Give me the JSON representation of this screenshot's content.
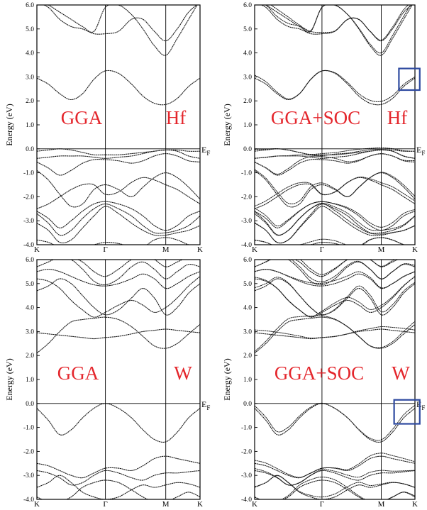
{
  "figure": {
    "fermi_label": "E",
    "fermi_sub": "F"
  },
  "chart_data": [
    {
      "type": "line",
      "panel": "top-left",
      "method_label": "GGA",
      "element_label": "Hf",
      "ylabel": "Energy (eV)",
      "ylim": [
        -4.0,
        6.0
      ],
      "yticks": [
        "6.0",
        "5.0",
        "4.0",
        "3.0",
        "2.0",
        "1.0",
        "0.0",
        "-1.0",
        "-2.0",
        "-3.0",
        "-4.0"
      ],
      "xticks": [
        {
          "label": "K",
          "x": 0
        },
        {
          "label": "Γ",
          "x": 0.42
        },
        {
          "label": "M",
          "x": 0.79
        },
        {
          "label": "K",
          "x": 1
        }
      ],
      "x": [
        0,
        0.07,
        0.14,
        0.21,
        0.28,
        0.35,
        0.42,
        0.5,
        0.58,
        0.65,
        0.72,
        0.79,
        0.86,
        0.93,
        1
      ],
      "soc_split": false,
      "highlight_box": null,
      "series": [
        {
          "values": [
            6.1,
            5.9,
            5.4,
            5.1,
            5.0,
            4.8,
            4.8,
            4.9,
            5.4,
            5.4,
            4.9,
            4.5,
            5.0,
            5.7,
            6.1
          ]
        },
        {
          "values": [
            6.2,
            6.0,
            5.7,
            5.4,
            5.1,
            4.9,
            5.9,
            6.0,
            5.6,
            5.0,
            4.3,
            3.9,
            4.6,
            5.4,
            6.2
          ]
        },
        {
          "values": [
            2.95,
            2.7,
            2.3,
            2.05,
            2.3,
            2.9,
            3.25,
            3.15,
            2.7,
            2.2,
            1.9,
            1.85,
            2.1,
            2.6,
            2.95
          ]
        },
        {
          "values": [
            -0.1,
            -0.05,
            0.0,
            -0.05,
            -0.15,
            -0.25,
            -0.25,
            -0.25,
            -0.2,
            -0.15,
            -0.1,
            -0.05,
            -0.05,
            -0.1,
            -0.1
          ]
        },
        {
          "values": [
            -0.4,
            -0.35,
            -0.3,
            -0.3,
            -0.3,
            -0.35,
            -0.4,
            -0.35,
            -0.3,
            -0.2,
            -0.1,
            -0.05,
            -0.1,
            -0.3,
            -0.4
          ]
        },
        {
          "values": [
            -0.55,
            -0.8,
            -1.1,
            -0.9,
            -0.6,
            -0.45,
            -0.45,
            -0.5,
            -0.6,
            -0.5,
            -0.3,
            -0.2,
            -0.3,
            -0.5,
            -0.55
          ]
        },
        {
          "values": [
            -0.9,
            -1.3,
            -1.9,
            -2.4,
            -2.3,
            -1.7,
            -1.5,
            -1.7,
            -2.0,
            -1.6,
            -1.2,
            -1.0,
            -1.2,
            -1.6,
            -2.1
          ]
        },
        {
          "values": [
            -2.5,
            -2.3,
            -2.0,
            -1.7,
            -1.5,
            -1.5,
            -1.9,
            -1.8,
            -1.4,
            -1.2,
            -1.3,
            -1.5,
            -1.7,
            -2.0,
            -2.3
          ]
        },
        {
          "values": [
            -2.6,
            -2.9,
            -3.3,
            -3.0,
            -2.6,
            -2.3,
            -2.2,
            -2.3,
            -2.5,
            -2.8,
            -3.2,
            -3.4,
            -3.2,
            -2.8,
            -2.6
          ]
        },
        {
          "values": [
            -2.7,
            -3.1,
            -3.6,
            -3.4,
            -2.9,
            -2.5,
            -2.3,
            -2.5,
            -2.8,
            -3.2,
            -3.5,
            -3.5,
            -3.4,
            -3.2,
            -2.8
          ]
        },
        {
          "values": [
            -3.1,
            -3.4,
            -3.9,
            -3.8,
            -3.3,
            -2.8,
            -2.4,
            -2.7,
            -3.1,
            -3.4,
            -3.6,
            -3.6,
            -3.5,
            -3.4,
            -3.2
          ]
        },
        {
          "values": [
            -3.8,
            -3.9,
            -4.1,
            -4.1,
            -4.1,
            -4.0,
            -3.9,
            -3.95,
            -4.1,
            -4.1,
            -3.8,
            -3.7,
            -3.8,
            -4.0,
            -4.1
          ]
        }
      ]
    },
    {
      "type": "line",
      "panel": "top-right",
      "method_label": "GGA+SOC",
      "element_label": "Hf",
      "ylabel": "Energy (eV)",
      "ylim": [
        -4.0,
        6.0
      ],
      "yticks": [
        "6.0",
        "5.0",
        "4.0",
        "3.0",
        "2.0",
        "1.0",
        "0.0",
        "-1.0",
        "-2.0",
        "-3.0",
        "-4.0"
      ],
      "xticks": [
        {
          "label": "K",
          "x": 0
        },
        {
          "label": "Γ",
          "x": 0.42
        },
        {
          "label": "M",
          "x": 0.79
        },
        {
          "label": "K",
          "x": 1
        }
      ],
      "x": [
        0,
        0.07,
        0.14,
        0.21,
        0.28,
        0.35,
        0.42,
        0.5,
        0.58,
        0.65,
        0.72,
        0.79,
        0.86,
        0.93,
        1
      ],
      "soc_split": true,
      "highlight_box": {
        "x": [
          0.9,
          1.03
        ],
        "y": [
          2.45,
          3.35
        ]
      },
      "series": [
        {
          "values": [
            6.1,
            5.9,
            5.4,
            5.1,
            5.0,
            4.8,
            4.8,
            4.9,
            5.4,
            5.4,
            4.9,
            4.5,
            5.0,
            5.7,
            6.1
          ]
        },
        {
          "values": [
            6.2,
            6.0,
            5.7,
            5.4,
            5.1,
            4.9,
            5.9,
            6.0,
            5.6,
            5.0,
            4.3,
            3.9,
            4.6,
            5.4,
            6.2
          ]
        },
        {
          "values": [
            2.95,
            2.7,
            2.3,
            2.05,
            2.3,
            2.9,
            3.25,
            3.15,
            2.7,
            2.2,
            1.9,
            1.85,
            2.1,
            2.6,
            2.95
          ]
        },
        {
          "values": [
            -0.1,
            -0.05,
            0.0,
            -0.05,
            -0.15,
            -0.25,
            -0.25,
            -0.25,
            -0.2,
            -0.15,
            -0.1,
            -0.05,
            -0.05,
            -0.1,
            -0.1
          ]
        },
        {
          "values": [
            -0.4,
            -0.35,
            -0.3,
            -0.3,
            -0.3,
            -0.35,
            -0.4,
            -0.35,
            -0.3,
            -0.2,
            -0.1,
            -0.05,
            -0.1,
            -0.3,
            -0.4
          ]
        },
        {
          "values": [
            -0.55,
            -0.8,
            -1.1,
            -0.9,
            -0.6,
            -0.45,
            -0.45,
            -0.5,
            -0.6,
            -0.5,
            -0.3,
            -0.2,
            -0.3,
            -0.5,
            -0.55
          ]
        },
        {
          "values": [
            -0.9,
            -1.3,
            -1.9,
            -2.4,
            -2.3,
            -1.7,
            -1.5,
            -1.7,
            -2.0,
            -1.6,
            -1.2,
            -1.0,
            -1.2,
            -1.6,
            -2.1
          ]
        },
        {
          "values": [
            -2.5,
            -2.3,
            -2.0,
            -1.7,
            -1.5,
            -1.5,
            -1.9,
            -1.8,
            -1.4,
            -1.2,
            -1.3,
            -1.5,
            -1.7,
            -2.0,
            -2.3
          ]
        },
        {
          "values": [
            -2.6,
            -2.9,
            -3.3,
            -3.0,
            -2.6,
            -2.3,
            -2.2,
            -2.3,
            -2.5,
            -2.8,
            -3.2,
            -3.4,
            -3.2,
            -2.8,
            -2.6
          ]
        },
        {
          "values": [
            -2.7,
            -3.1,
            -3.6,
            -3.4,
            -2.9,
            -2.5,
            -2.3,
            -2.5,
            -2.8,
            -3.2,
            -3.5,
            -3.5,
            -3.4,
            -3.2,
            -2.8
          ]
        },
        {
          "values": [
            -3.1,
            -3.4,
            -3.9,
            -3.8,
            -3.3,
            -2.8,
            -2.4,
            -2.7,
            -3.1,
            -3.4,
            -3.6,
            -3.6,
            -3.5,
            -3.4,
            -3.2
          ]
        },
        {
          "values": [
            -3.8,
            -3.9,
            -4.1,
            -4.1,
            -4.1,
            -4.0,
            -3.9,
            -3.95,
            -4.1,
            -4.1,
            -3.8,
            -3.7,
            -3.8,
            -4.0,
            -4.1
          ]
        }
      ]
    },
    {
      "type": "line",
      "panel": "bottom-left",
      "method_label": "GGA",
      "element_label": "W",
      "ylabel": "Energy (eV)",
      "ylim": [
        -4.0,
        6.0
      ],
      "yticks": [
        "6.0",
        "5.0",
        "4.0",
        "3.0",
        "2.0",
        "1.0",
        "0.0",
        "-1.0",
        "-2.0",
        "-3.0",
        "-4.0"
      ],
      "xticks": [
        {
          "label": "K",
          "x": 0
        },
        {
          "label": "Γ",
          "x": 0.42
        },
        {
          "label": "M",
          "x": 0.79
        },
        {
          "label": "K",
          "x": 1
        }
      ],
      "x": [
        0,
        0.07,
        0.14,
        0.21,
        0.28,
        0.35,
        0.42,
        0.5,
        0.58,
        0.65,
        0.72,
        0.79,
        0.86,
        0.93,
        1
      ],
      "soc_split": false,
      "highlight_box": null,
      "series": [
        {
          "values": [
            2.1,
            2.5,
            3.0,
            3.4,
            3.5,
            3.55,
            3.6,
            3.5,
            3.2,
            2.8,
            2.4,
            2.3,
            2.5,
            2.9,
            3.3
          ]
        },
        {
          "values": [
            2.95,
            2.9,
            2.85,
            2.8,
            2.75,
            2.7,
            2.75,
            2.8,
            2.9,
            3.0,
            3.05,
            3.1,
            3.05,
            3.0,
            2.95
          ]
        },
        {
          "values": [
            4.7,
            4.9,
            5.2,
            5.0,
            4.5,
            4.0,
            3.7,
            3.9,
            4.4,
            4.8,
            4.4,
            3.7,
            4.0,
            4.6,
            5.0
          ]
        },
        {
          "values": [
            5.2,
            5.1,
            4.8,
            4.3,
            3.9,
            3.6,
            3.8,
            4.1,
            4.3,
            4.1,
            3.8,
            4.0,
            4.4,
            4.9,
            5.3
          ]
        },
        {
          "values": [
            5.5,
            5.6,
            5.5,
            5.3,
            5.1,
            4.95,
            4.9,
            5.0,
            5.2,
            5.4,
            5.2,
            4.8,
            5.0,
            5.3,
            5.5
          ]
        },
        {
          "values": [
            5.7,
            5.9,
            6.1,
            6.0,
            5.6,
            5.1,
            4.95,
            5.2,
            5.7,
            5.9,
            5.6,
            5.2,
            5.5,
            5.8,
            5.7
          ]
        },
        {
          "values": [
            6.1,
            6.1,
            6.1,
            6.1,
            5.9,
            5.5,
            5.3,
            5.6,
            6.0,
            6.1,
            6.0,
            5.7,
            5.9,
            6.1,
            6.1
          ]
        },
        {
          "values": [
            -0.2,
            -0.7,
            -1.3,
            -1.1,
            -0.6,
            -0.2,
            0.0,
            -0.2,
            -0.6,
            -1.1,
            -1.5,
            -1.6,
            -1.2,
            -0.6,
            -0.2
          ]
        },
        {
          "values": [
            -2.5,
            -2.6,
            -2.8,
            -3.0,
            -3.1,
            -2.9,
            -2.7,
            -2.7,
            -2.8,
            -2.6,
            -2.3,
            -2.2,
            -2.3,
            -2.4,
            -2.5
          ]
        },
        {
          "values": [
            -2.8,
            -2.9,
            -3.1,
            -3.4,
            -3.3,
            -3.0,
            -2.8,
            -2.9,
            -3.1,
            -3.2,
            -3.0,
            -2.9,
            -2.9,
            -2.85,
            -2.8
          ]
        },
        {
          "values": [
            -3.5,
            -3.3,
            -3.0,
            -3.3,
            -3.7,
            -3.9,
            -4.0,
            -3.9,
            -3.6,
            -3.4,
            -3.5,
            -3.4,
            -3.3,
            -3.35,
            -3.5
          ]
        },
        {
          "values": [
            -3.9,
            -4.1,
            -4.1,
            -3.9,
            -3.5,
            -3.3,
            -3.2,
            -3.3,
            -3.6,
            -3.9,
            -4.1,
            -4.1,
            -3.9,
            -3.7,
            -3.9
          ]
        }
      ]
    },
    {
      "type": "line",
      "panel": "bottom-right",
      "method_label": "GGA+SOC",
      "element_label": "W",
      "ylabel": "Energy (eV)",
      "ylim": [
        -4.0,
        6.0
      ],
      "yticks": [
        "6.0",
        "5.0",
        "4.0",
        "3.0",
        "2.0",
        "1.0",
        "0.0",
        "-1.0",
        "-2.0",
        "-3.0",
        "-4.0"
      ],
      "xticks": [
        {
          "label": "K",
          "x": 0
        },
        {
          "label": "Γ",
          "x": 0.42
        },
        {
          "label": "M",
          "x": 0.79
        },
        {
          "label": "K",
          "x": 1
        }
      ],
      "x": [
        0,
        0.07,
        0.14,
        0.21,
        0.28,
        0.35,
        0.42,
        0.5,
        0.58,
        0.65,
        0.72,
        0.79,
        0.86,
        0.93,
        1
      ],
      "soc_split": true,
      "highlight_box": {
        "x": [
          0.87,
          1.03
        ],
        "y": [
          -0.85,
          0.15
        ]
      },
      "series": [
        {
          "values": [
            2.1,
            2.5,
            3.0,
            3.4,
            3.5,
            3.55,
            3.6,
            3.5,
            3.2,
            2.8,
            2.4,
            2.3,
            2.5,
            2.9,
            3.3
          ]
        },
        {
          "values": [
            2.95,
            2.9,
            2.85,
            2.8,
            2.75,
            2.7,
            2.75,
            2.8,
            2.9,
            3.0,
            3.05,
            3.1,
            3.05,
            3.0,
            2.95
          ]
        },
        {
          "values": [
            4.7,
            4.9,
            5.2,
            5.0,
            4.5,
            4.0,
            3.7,
            3.9,
            4.4,
            4.8,
            4.4,
            3.7,
            4.0,
            4.6,
            5.0
          ]
        },
        {
          "values": [
            5.2,
            5.1,
            4.8,
            4.3,
            3.9,
            3.6,
            3.8,
            4.1,
            4.3,
            4.1,
            3.8,
            4.0,
            4.4,
            4.9,
            5.3
          ]
        },
        {
          "values": [
            5.5,
            5.6,
            5.5,
            5.3,
            5.1,
            4.95,
            4.9,
            5.0,
            5.2,
            5.4,
            5.2,
            4.8,
            5.0,
            5.3,
            5.5
          ]
        },
        {
          "values": [
            5.7,
            5.9,
            6.1,
            6.0,
            5.6,
            5.1,
            4.95,
            5.2,
            5.7,
            5.9,
            5.6,
            5.2,
            5.5,
            5.8,
            5.7
          ]
        },
        {
          "values": [
            6.1,
            6.1,
            6.1,
            6.1,
            5.9,
            5.5,
            5.3,
            5.6,
            6.0,
            6.1,
            6.0,
            5.7,
            5.9,
            6.1,
            6.1
          ]
        },
        {
          "values": [
            -0.2,
            -0.7,
            -1.3,
            -1.1,
            -0.6,
            -0.2,
            0.0,
            -0.2,
            -0.6,
            -1.1,
            -1.5,
            -1.6,
            -1.2,
            -0.6,
            -0.2
          ]
        },
        {
          "values": [
            -2.5,
            -2.6,
            -2.8,
            -3.0,
            -3.1,
            -2.9,
            -2.7,
            -2.7,
            -2.8,
            -2.6,
            -2.3,
            -2.2,
            -2.3,
            -2.4,
            -2.5
          ]
        },
        {
          "values": [
            -2.8,
            -2.9,
            -3.1,
            -3.4,
            -3.3,
            -3.0,
            -2.8,
            -2.9,
            -3.1,
            -3.2,
            -3.0,
            -2.9,
            -2.9,
            -2.85,
            -2.8
          ]
        },
        {
          "values": [
            -3.5,
            -3.3,
            -3.0,
            -3.3,
            -3.7,
            -3.9,
            -4.0,
            -3.9,
            -3.6,
            -3.4,
            -3.5,
            -3.4,
            -3.3,
            -3.35,
            -3.5
          ]
        },
        {
          "values": [
            -3.9,
            -4.1,
            -4.1,
            -3.9,
            -3.5,
            -3.3,
            -3.2,
            -3.3,
            -3.6,
            -3.9,
            -4.1,
            -4.1,
            -3.9,
            -3.7,
            -3.9
          ]
        }
      ]
    }
  ],
  "colors": {
    "band": "#1a1a1a",
    "frame": "#000000",
    "label_red": "#e4262c",
    "highlight_box": "#2e4aa0",
    "background": "#ffffff"
  }
}
